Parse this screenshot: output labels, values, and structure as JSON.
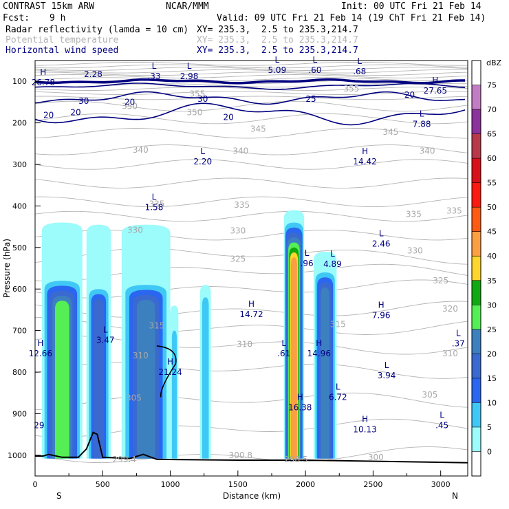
{
  "header": {
    "model": "CONTRAST 15km ARW",
    "center": "NCAR/MMM",
    "init": "Init: 00 UTC Fri 21 Feb 14",
    "fcst_label": "Fcst:",
    "fcst_value": "9 h",
    "valid": "Valid: 09 UTC Fri 21 Feb 14 (19 ChT Fri 21 Feb 14)"
  },
  "fields": [
    {
      "name": "Radar reflectivity (lamda = 10 cm)",
      "xy": "XY= 235.3,  2.5 to 235.3,214.7",
      "color": "#000000"
    },
    {
      "name": "Potential temperature",
      "xy": "XY= 235.3,  2.5 to 235.3,214.7",
      "color": "#b4b4b4"
    },
    {
      "name": "Horizontal wind speed",
      "xy": "XY= 235.3,  2.5 to 235.3,214.7",
      "color": "#000080"
    }
  ],
  "chart_data": {
    "type": "heatmap",
    "xlabel": "Distance (km)",
    "ylabel": "Pressure (hPa)",
    "xlim": [
      0,
      3200
    ],
    "ylim": [
      50,
      1050
    ],
    "x_ticks": [
      0,
      500,
      1000,
      1500,
      2000,
      2500,
      3000
    ],
    "y_ticks": [
      100,
      200,
      300,
      400,
      500,
      600,
      700,
      800,
      900,
      1000
    ],
    "x_end_labels": {
      "left": "S",
      "right": "N"
    },
    "colorbar": {
      "unit": "dBZ",
      "levels": [
        0,
        5,
        10,
        15,
        20,
        25,
        30,
        35,
        40,
        45,
        50,
        55,
        60,
        65,
        70,
        75
      ],
      "colors": [
        "#ffffff",
        "#9cfbfb",
        "#3fc8f6",
        "#2a66f0",
        "#3a6ad0",
        "#3c80c0",
        "#55ef55",
        "#12a812",
        "#fdd52c",
        "#fba042",
        "#fd5a14",
        "#fb1a10",
        "#d8101a",
        "#b83a4a",
        "#8c329c",
        "#c27cc4"
      ]
    },
    "reflectivity_columns": [
      {
        "x0": 50,
        "x1": 350,
        "top": 440,
        "core_top": 580,
        "max_dbz": 30
      },
      {
        "x0": 380,
        "x1": 560,
        "top": 445,
        "core_top": 600,
        "max_dbz": 20
      },
      {
        "x0": 640,
        "x1": 1000,
        "top": 445,
        "core_top": 590,
        "max_dbz": 25
      },
      {
        "x0": 1000,
        "x1": 1060,
        "top": 640,
        "core_top": 700,
        "max_dbz": 10
      },
      {
        "x0": 1220,
        "x1": 1300,
        "top": 590,
        "core_top": 620,
        "max_dbz": 10
      },
      {
        "x0": 1840,
        "x1": 1990,
        "top": 410,
        "core_top": 440,
        "max_dbz": 45
      },
      {
        "x0": 2060,
        "x1": 2230,
        "top": 510,
        "core_top": 560,
        "max_dbz": 25
      }
    ],
    "theta_labels": [
      {
        "x": 1200,
        "p": 130,
        "text": "355"
      },
      {
        "x": 2340,
        "p": 118,
        "text": "355"
      },
      {
        "x": 700,
        "p": 160,
        "text": "350"
      },
      {
        "x": 1180,
        "p": 175,
        "text": "350"
      },
      {
        "x": 1650,
        "p": 215,
        "text": "345"
      },
      {
        "x": 2630,
        "p": 222,
        "text": "345"
      },
      {
        "x": 780,
        "p": 265,
        "text": "340"
      },
      {
        "x": 1520,
        "p": 268,
        "text": "340"
      },
      {
        "x": 2900,
        "p": 268,
        "text": "340"
      },
      {
        "x": 900,
        "p": 395,
        "text": "335"
      },
      {
        "x": 1530,
        "p": 398,
        "text": "335"
      },
      {
        "x": 2800,
        "p": 420,
        "text": "335"
      },
      {
        "x": 3100,
        "p": 412,
        "text": "335"
      },
      {
        "x": 740,
        "p": 458,
        "text": "330"
      },
      {
        "x": 1500,
        "p": 460,
        "text": "330"
      },
      {
        "x": 2810,
        "p": 508,
        "text": "330"
      },
      {
        "x": 1500,
        "p": 528,
        "text": "325"
      },
      {
        "x": 3000,
        "p": 580,
        "text": "325"
      },
      {
        "x": 3070,
        "p": 648,
        "text": "320"
      },
      {
        "x": 900,
        "p": 688,
        "text": "315"
      },
      {
        "x": 2240,
        "p": 685,
        "text": "315"
      },
      {
        "x": 1550,
        "p": 733,
        "text": "310"
      },
      {
        "x": 780,
        "p": 760,
        "text": "310"
      },
      {
        "x": 3070,
        "p": 755,
        "text": "310"
      },
      {
        "x": 730,
        "p": 862,
        "text": "305"
      },
      {
        "x": 2920,
        "p": 855,
        "text": "305"
      },
      {
        "x": 1520,
        "p": 1000,
        "text": "300.8"
      },
      {
        "x": 2520,
        "p": 1005,
        "text": "300"
      },
      {
        "x": 660,
        "p": 1010,
        "text": "299.4"
      },
      {
        "x": 1930,
        "p": 1010,
        "text": "298.5"
      }
    ],
    "wind_labels": [
      {
        "x": 360,
        "p": 148,
        "text": "30"
      },
      {
        "x": 1240,
        "p": 143,
        "text": "30"
      },
      {
        "x": 300,
        "p": 175,
        "text": "20"
      },
      {
        "x": 700,
        "p": 150,
        "text": "20"
      },
      {
        "x": 1430,
        "p": 187,
        "text": "20"
      },
      {
        "x": 2040,
        "p": 143,
        "text": "25"
      },
      {
        "x": 2770,
        "p": 133,
        "text": "20"
      },
      {
        "x": 100,
        "p": 182,
        "text": "20"
      }
    ],
    "extrema": [
      {
        "x": 60,
        "p": 85,
        "type": "H",
        "value": "26.78"
      },
      {
        "x": 430,
        "p": 65,
        "type": "",
        "value": "2.28"
      },
      {
        "x": 880,
        "p": 70,
        "type": "L",
        "value": ".33"
      },
      {
        "x": 1140,
        "p": 70,
        "type": "L",
        "value": "2.98"
      },
      {
        "x": 1790,
        "p": 55,
        "type": "L",
        "value": "5.09"
      },
      {
        "x": 2070,
        "p": 55,
        "type": "L",
        "value": ".60"
      },
      {
        "x": 2400,
        "p": 58,
        "type": "L",
        "value": ".68"
      },
      {
        "x": 2960,
        "p": 105,
        "type": "H",
        "value": "27.65"
      },
      {
        "x": 2860,
        "p": 185,
        "type": "L",
        "value": "7.88"
      },
      {
        "x": 1240,
        "p": 275,
        "type": "L",
        "value": "2.20"
      },
      {
        "x": 2440,
        "p": 275,
        "type": "H",
        "value": "14.42"
      },
      {
        "x": 880,
        "p": 385,
        "type": "L",
        "value": "1.58"
      },
      {
        "x": 2560,
        "p": 473,
        "type": "L",
        "value": "2.46"
      },
      {
        "x": 2010,
        "p": 520,
        "type": "L",
        "value": ".96"
      },
      {
        "x": 2200,
        "p": 522,
        "type": "L",
        "value": "4.89"
      },
      {
        "x": 1600,
        "p": 643,
        "type": "H",
        "value": "14.72"
      },
      {
        "x": 2560,
        "p": 645,
        "type": "H",
        "value": "7.96"
      },
      {
        "x": 520,
        "p": 705,
        "type": "L",
        "value": "3.47"
      },
      {
        "x": 40,
        "p": 737,
        "type": "H",
        "value": "12.66"
      },
      {
        "x": 1840,
        "p": 737,
        "type": "L",
        "value": ".61"
      },
      {
        "x": 2100,
        "p": 737,
        "type": "H",
        "value": "14.96"
      },
      {
        "x": 3130,
        "p": 713,
        "type": "L",
        "value": ".37"
      },
      {
        "x": 1000,
        "p": 782,
        "type": "H",
        "value": "21.24"
      },
      {
        "x": 2600,
        "p": 790,
        "type": "L",
        "value": "3.94"
      },
      {
        "x": 2240,
        "p": 842,
        "type": "L",
        "value": "6.72"
      },
      {
        "x": 1960,
        "p": 867,
        "type": "H",
        "value": "16.38"
      },
      {
        "x": 2440,
        "p": 920,
        "type": "H",
        "value": "10.13"
      },
      {
        "x": 3010,
        "p": 910,
        "type": "L",
        "value": ".45"
      },
      {
        "x": 30,
        "p": 910,
        "type": "",
        "value": "29"
      }
    ],
    "terrain": [
      [
        0,
        1002
      ],
      [
        60,
        1002
      ],
      [
        100,
        998
      ],
      [
        200,
        1005
      ],
      [
        320,
        1005
      ],
      [
        380,
        985
      ],
      [
        430,
        945
      ],
      [
        460,
        950
      ],
      [
        500,
        1005
      ],
      [
        700,
        1008
      ],
      [
        800,
        998
      ],
      [
        900,
        1010
      ],
      [
        1500,
        1012
      ],
      [
        2000,
        1012
      ],
      [
        2600,
        1015
      ],
      [
        3200,
        1018
      ]
    ]
  }
}
